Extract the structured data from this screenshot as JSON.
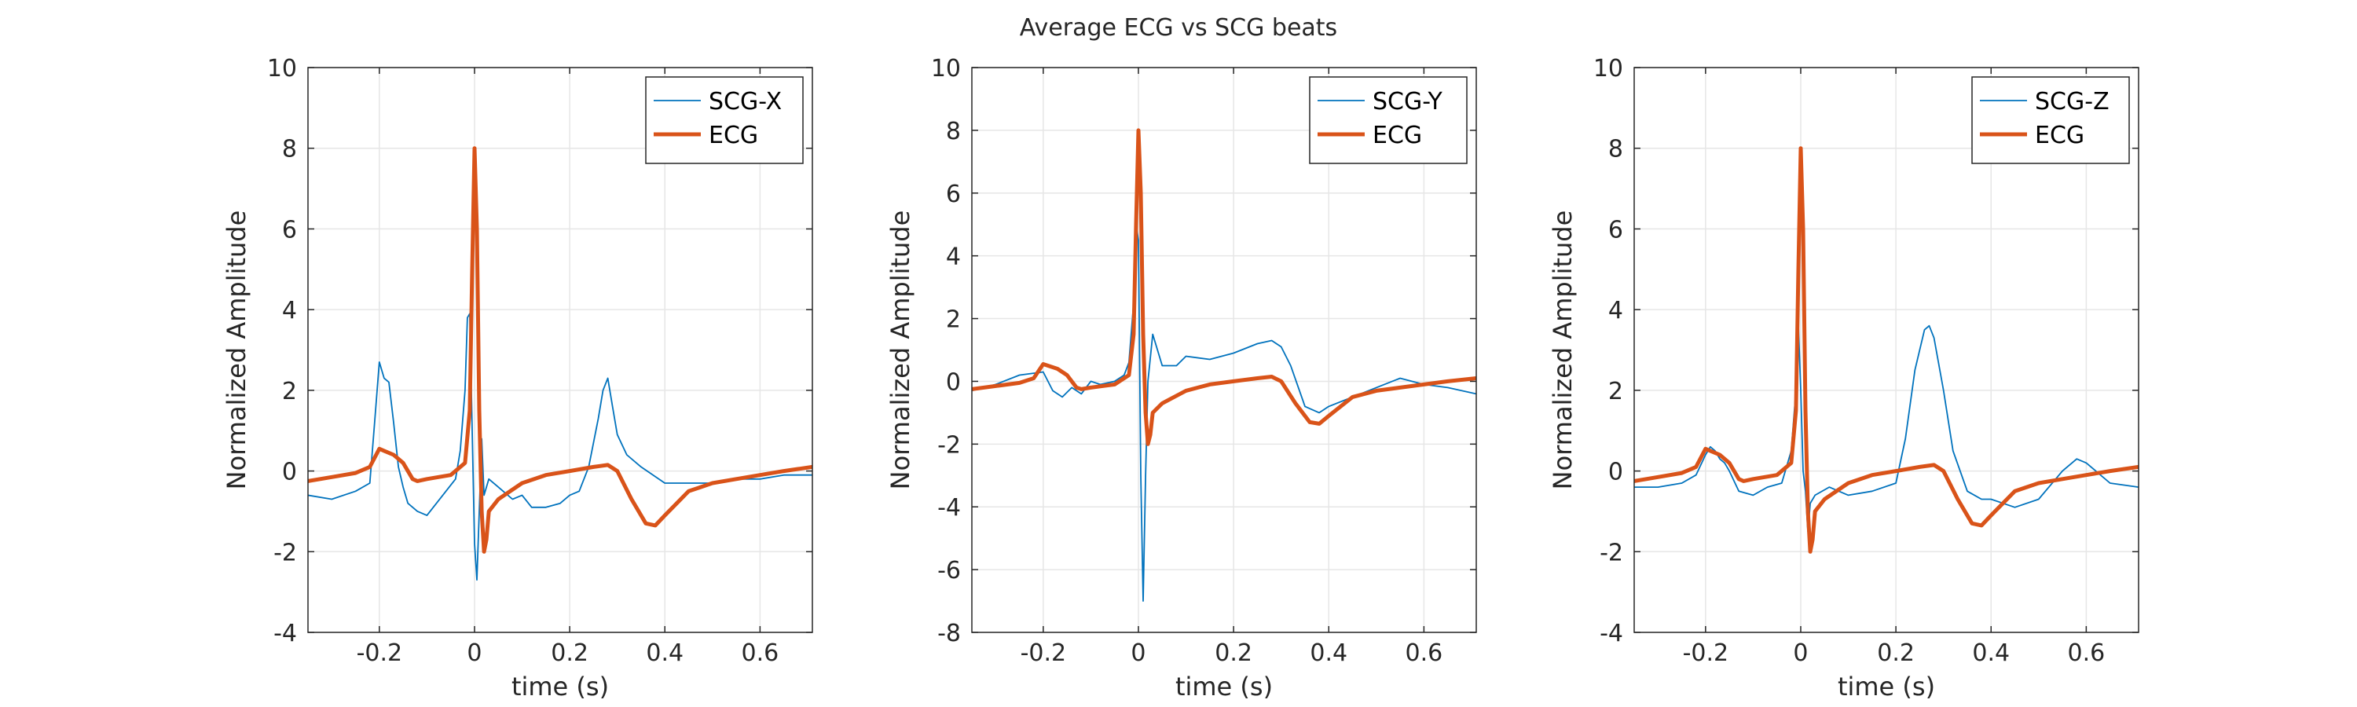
{
  "figure": {
    "title": "Average ECG vs SCG beats"
  },
  "colors": {
    "scg": "#0072BD",
    "ecg": "#D95319",
    "grid": "#e6e6e6",
    "axis": "#262626"
  },
  "chart_data": [
    {
      "type": "line",
      "xlabel": "time (s)",
      "ylabel": "Normalized Amplitude",
      "xlim": [
        -0.35,
        0.71
      ],
      "ylim": [
        -4,
        10
      ],
      "xticks": [
        -0.2,
        0,
        0.2,
        0.4,
        0.6
      ],
      "xtick_labels": [
        "-0.2",
        "0",
        "0.2",
        "0.4",
        "0.6"
      ],
      "yticks": [
        -4,
        -2,
        0,
        2,
        4,
        6,
        8,
        10
      ],
      "ytick_labels": [
        "-4",
        "-2",
        "0",
        "2",
        "4",
        "6",
        "8",
        "10"
      ],
      "grid": true,
      "legend_position": "top-right",
      "series": [
        {
          "name": "SCG-X",
          "style": "thin",
          "x": [
            -0.35,
            -0.3,
            -0.25,
            -0.22,
            -0.21,
            -0.2,
            -0.19,
            -0.18,
            -0.17,
            -0.16,
            -0.15,
            -0.14,
            -0.12,
            -0.1,
            -0.08,
            -0.06,
            -0.04,
            -0.03,
            -0.02,
            -0.015,
            -0.01,
            -0.005,
            0,
            0.005,
            0.01,
            0.015,
            0.02,
            0.03,
            0.05,
            0.08,
            0.1,
            0.12,
            0.15,
            0.18,
            0.2,
            0.22,
            0.24,
            0.26,
            0.27,
            0.28,
            0.29,
            0.3,
            0.32,
            0.35,
            0.4,
            0.45,
            0.5,
            0.55,
            0.6,
            0.65,
            0.71
          ],
          "y": [
            -0.6,
            -0.7,
            -0.5,
            -0.3,
            1.2,
            2.7,
            2.3,
            2.2,
            1.2,
            0.1,
            -0.4,
            -0.8,
            -1.0,
            -1.1,
            -0.8,
            -0.5,
            -0.2,
            0.5,
            2.0,
            3.8,
            3.9,
            1.0,
            -1.8,
            -2.7,
            -1.0,
            0.8,
            -0.6,
            -0.2,
            -0.4,
            -0.7,
            -0.6,
            -0.9,
            -0.9,
            -0.8,
            -0.6,
            -0.5,
            0.1,
            1.3,
            2.0,
            2.3,
            1.6,
            0.9,
            0.4,
            0.1,
            -0.3,
            -0.3,
            -0.3,
            -0.2,
            -0.2,
            -0.1,
            -0.1
          ]
        },
        {
          "name": "ECG",
          "style": "thick",
          "x": [
            -0.35,
            -0.3,
            -0.25,
            -0.22,
            -0.2,
            -0.19,
            -0.17,
            -0.15,
            -0.13,
            -0.12,
            -0.1,
            -0.05,
            -0.02,
            -0.01,
            -0.005,
            0,
            0.005,
            0.01,
            0.015,
            0.02,
            0.025,
            0.03,
            0.05,
            0.1,
            0.15,
            0.2,
            0.25,
            0.28,
            0.3,
            0.33,
            0.36,
            0.38,
            0.4,
            0.45,
            0.5,
            0.55,
            0.6,
            0.65,
            0.71
          ],
          "y": [
            -0.25,
            -0.15,
            -0.05,
            0.1,
            0.55,
            0.5,
            0.4,
            0.2,
            -0.2,
            -0.25,
            -0.2,
            -0.1,
            0.2,
            1.5,
            5.0,
            8.0,
            6.0,
            1.5,
            -1.0,
            -2.0,
            -1.7,
            -1.0,
            -0.7,
            -0.3,
            -0.1,
            0.0,
            0.1,
            0.15,
            0.0,
            -0.7,
            -1.3,
            -1.35,
            -1.1,
            -0.5,
            -0.3,
            -0.2,
            -0.1,
            0.0,
            0.1
          ]
        }
      ]
    },
    {
      "type": "line",
      "xlabel": "time (s)",
      "ylabel": "Normalized Amplitude",
      "xlim": [
        -0.35,
        0.71
      ],
      "ylim": [
        -8,
        10
      ],
      "xticks": [
        -0.2,
        0,
        0.2,
        0.4,
        0.6
      ],
      "xtick_labels": [
        "-0.2",
        "0",
        "0.2",
        "0.4",
        "0.6"
      ],
      "yticks": [
        -8,
        -6,
        -4,
        -2,
        0,
        2,
        4,
        6,
        8,
        10
      ],
      "ytick_labels": [
        "-8",
        "-6",
        "-4",
        "-2",
        "0",
        "2",
        "4",
        "6",
        "8",
        "10"
      ],
      "grid": true,
      "legend_position": "top-right",
      "series": [
        {
          "name": "SCG-Y",
          "style": "thin",
          "x": [
            -0.35,
            -0.3,
            -0.25,
            -0.2,
            -0.18,
            -0.16,
            -0.14,
            -0.12,
            -0.1,
            -0.08,
            -0.05,
            -0.03,
            -0.02,
            -0.01,
            -0.005,
            0,
            0.005,
            0.01,
            0.015,
            0.02,
            0.03,
            0.05,
            0.08,
            0.1,
            0.15,
            0.2,
            0.25,
            0.28,
            0.3,
            0.32,
            0.35,
            0.38,
            0.4,
            0.45,
            0.5,
            0.55,
            0.6,
            0.65,
            0.71
          ],
          "y": [
            -0.3,
            -0.1,
            0.2,
            0.3,
            -0.3,
            -0.5,
            -0.2,
            -0.4,
            0.0,
            -0.1,
            0.0,
            0.2,
            0.6,
            2.5,
            5.0,
            4.5,
            -3.0,
            -7.0,
            -3.0,
            0.0,
            1.5,
            0.5,
            0.5,
            0.8,
            0.7,
            0.9,
            1.2,
            1.3,
            1.1,
            0.5,
            -0.8,
            -1.0,
            -0.8,
            -0.5,
            -0.2,
            0.1,
            -0.1,
            -0.2,
            -0.4
          ]
        },
        {
          "name": "ECG",
          "style": "thick",
          "x": [
            -0.35,
            -0.3,
            -0.25,
            -0.22,
            -0.2,
            -0.19,
            -0.17,
            -0.15,
            -0.13,
            -0.12,
            -0.1,
            -0.05,
            -0.02,
            -0.01,
            -0.005,
            0,
            0.005,
            0.01,
            0.015,
            0.02,
            0.025,
            0.03,
            0.05,
            0.1,
            0.15,
            0.2,
            0.25,
            0.28,
            0.3,
            0.33,
            0.36,
            0.38,
            0.4,
            0.45,
            0.5,
            0.55,
            0.6,
            0.65,
            0.71
          ],
          "y": [
            -0.25,
            -0.15,
            -0.05,
            0.1,
            0.55,
            0.5,
            0.4,
            0.2,
            -0.2,
            -0.25,
            -0.2,
            -0.1,
            0.2,
            1.5,
            5.0,
            8.0,
            6.0,
            1.5,
            -1.0,
            -2.0,
            -1.7,
            -1.0,
            -0.7,
            -0.3,
            -0.1,
            0.0,
            0.1,
            0.15,
            0.0,
            -0.7,
            -1.3,
            -1.35,
            -1.1,
            -0.5,
            -0.3,
            -0.2,
            -0.1,
            0.0,
            0.1
          ]
        }
      ]
    },
    {
      "type": "line",
      "xlabel": "time (s)",
      "ylabel": "Normalized Amplitude",
      "xlim": [
        -0.35,
        0.71
      ],
      "ylim": [
        -4,
        10
      ],
      "xticks": [
        -0.2,
        0,
        0.2,
        0.4,
        0.6
      ],
      "xtick_labels": [
        "-0.2",
        "0",
        "0.2",
        "0.4",
        "0.6"
      ],
      "yticks": [
        -4,
        -2,
        0,
        2,
        4,
        6,
        8,
        10
      ],
      "ytick_labels": [
        "-4",
        "-2",
        "0",
        "2",
        "4",
        "6",
        "8",
        "10"
      ],
      "grid": true,
      "legend_position": "top-right",
      "series": [
        {
          "name": "SCG-Z",
          "style": "thin",
          "x": [
            -0.35,
            -0.3,
            -0.25,
            -0.22,
            -0.2,
            -0.19,
            -0.18,
            -0.17,
            -0.16,
            -0.15,
            -0.13,
            -0.1,
            -0.07,
            -0.04,
            -0.02,
            -0.01,
            -0.005,
            0,
            0.005,
            0.01,
            0.015,
            0.02,
            0.03,
            0.06,
            0.1,
            0.15,
            0.2,
            0.22,
            0.24,
            0.26,
            0.27,
            0.28,
            0.3,
            0.32,
            0.35,
            0.38,
            0.4,
            0.45,
            0.5,
            0.55,
            0.58,
            0.6,
            0.65,
            0.71
          ],
          "y": [
            -0.4,
            -0.4,
            -0.3,
            -0.1,
            0.4,
            0.6,
            0.5,
            0.3,
            0.2,
            0.0,
            -0.5,
            -0.6,
            -0.4,
            -0.3,
            0.5,
            2.0,
            3.6,
            2.0,
            0.0,
            -0.5,
            -1.5,
            -0.8,
            -0.6,
            -0.4,
            -0.6,
            -0.5,
            -0.3,
            0.8,
            2.5,
            3.5,
            3.6,
            3.3,
            2.0,
            0.5,
            -0.5,
            -0.7,
            -0.7,
            -0.9,
            -0.7,
            0.0,
            0.3,
            0.2,
            -0.3,
            -0.4
          ]
        },
        {
          "name": "ECG",
          "style": "thick",
          "x": [
            -0.35,
            -0.3,
            -0.25,
            -0.22,
            -0.2,
            -0.19,
            -0.17,
            -0.15,
            -0.13,
            -0.12,
            -0.1,
            -0.05,
            -0.02,
            -0.01,
            -0.005,
            0,
            0.005,
            0.01,
            0.015,
            0.02,
            0.025,
            0.03,
            0.05,
            0.1,
            0.15,
            0.2,
            0.25,
            0.28,
            0.3,
            0.33,
            0.36,
            0.38,
            0.4,
            0.45,
            0.5,
            0.55,
            0.6,
            0.65,
            0.71
          ],
          "y": [
            -0.25,
            -0.15,
            -0.05,
            0.1,
            0.55,
            0.5,
            0.4,
            0.2,
            -0.2,
            -0.25,
            -0.2,
            -0.1,
            0.2,
            1.5,
            5.0,
            8.0,
            6.0,
            1.5,
            -1.0,
            -2.0,
            -1.7,
            -1.0,
            -0.7,
            -0.3,
            -0.1,
            0.0,
            0.1,
            0.15,
            0.0,
            -0.7,
            -1.3,
            -1.35,
            -1.1,
            -0.5,
            -0.3,
            -0.2,
            -0.1,
            0.0,
            0.1
          ]
        }
      ]
    }
  ]
}
